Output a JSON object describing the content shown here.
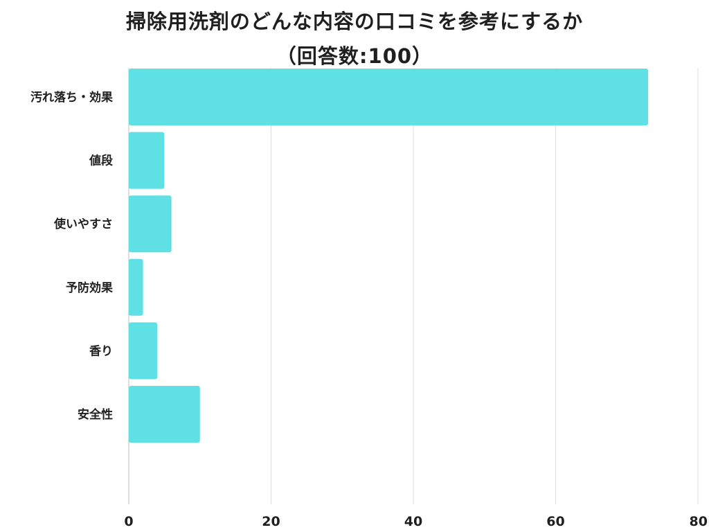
{
  "chart_data": {
    "type": "bar",
    "orientation": "horizontal",
    "title": "掃除用洗剤のどんな内容の口コミを参考にするか",
    "subtitle": "（回答数:100）",
    "categories": [
      "汚れ落ち・効果",
      "値段",
      "使いやすさ",
      "予防効果",
      "香り",
      "安全性"
    ],
    "values": [
      73,
      5,
      6,
      2,
      4,
      10
    ],
    "xlim": [
      0,
      80
    ],
    "xticks": [
      0,
      20,
      40,
      60,
      80
    ],
    "grid": true,
    "bar_color": "#5ee0e4",
    "grid_color": "#dcdcdc"
  }
}
